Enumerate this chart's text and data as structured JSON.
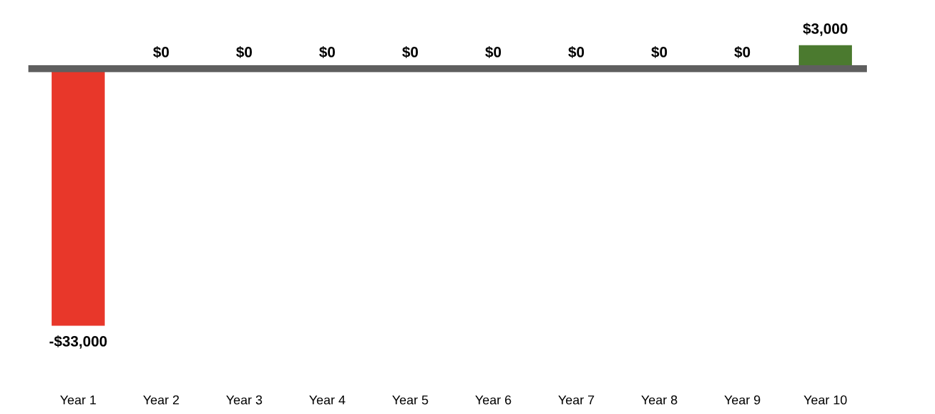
{
  "chart_data": {
    "type": "bar",
    "categories": [
      "Year 1",
      "Year 2",
      "Year 3",
      "Year 4",
      "Year 5",
      "Year 6",
      "Year 7",
      "Year 8",
      "Year 9",
      "Year 10"
    ],
    "values": [
      -33000,
      0,
      0,
      0,
      0,
      0,
      0,
      0,
      0,
      3000
    ],
    "colors": [
      "#e8372a",
      "#4b7a2f",
      "#4b7a2f",
      "#4b7a2f",
      "#4b7a2f",
      "#4b7a2f",
      "#4b7a2f",
      "#4b7a2f",
      "#4b7a2f",
      "#4b7a2f"
    ],
    "value_labels": [
      "-$33,000",
      "$0",
      "$0",
      "$0",
      "$0",
      "$0",
      "$0",
      "$0",
      "$0",
      "$3,000"
    ],
    "grid": false,
    "legend": false
  }
}
